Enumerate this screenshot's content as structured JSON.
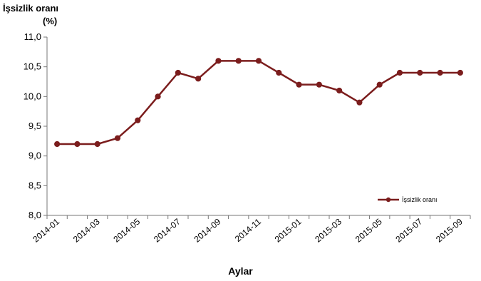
{
  "chart_data": {
    "type": "line",
    "title": "İşsizlik oranı",
    "ylabel": "(%)",
    "xlabel": "Aylar",
    "ylim": [
      8.0,
      11.0
    ],
    "y_ticks": [
      "8,0",
      "8,5",
      "9,0",
      "9,5",
      "10,0",
      "10,5",
      "11,0"
    ],
    "y_tick_values": [
      8.0,
      8.5,
      9.0,
      9.5,
      10.0,
      10.5,
      11.0
    ],
    "x": [
      "2014-01",
      "2014-02",
      "2014-03",
      "2014-04",
      "2014-05",
      "2014-06",
      "2014-07",
      "2014-08",
      "2014-09",
      "2014-10",
      "2014-11",
      "2014-12",
      "2015-01",
      "2015-02",
      "2015-03",
      "2015-04",
      "2015-05",
      "2015-06",
      "2015-07",
      "2015-08",
      "2015-09"
    ],
    "x_tick_labels": [
      "2014-01",
      "2014-03",
      "2014-05",
      "2014-07",
      "2014-09",
      "2014-11",
      "2015-01",
      "2015-03",
      "2015-05",
      "2015-07",
      "2015-09"
    ],
    "series": [
      {
        "name": "İşsizlik oranı",
        "color": "#7b1d1d",
        "values": [
          9.2,
          9.2,
          9.2,
          9.3,
          9.6,
          10.0,
          10.4,
          10.3,
          10.6,
          10.6,
          10.6,
          10.4,
          10.2,
          10.2,
          10.1,
          9.9,
          10.2,
          10.4,
          10.4,
          10.4,
          10.4
        ]
      }
    ],
    "grid": false,
    "legend_position": "bottom-right"
  }
}
